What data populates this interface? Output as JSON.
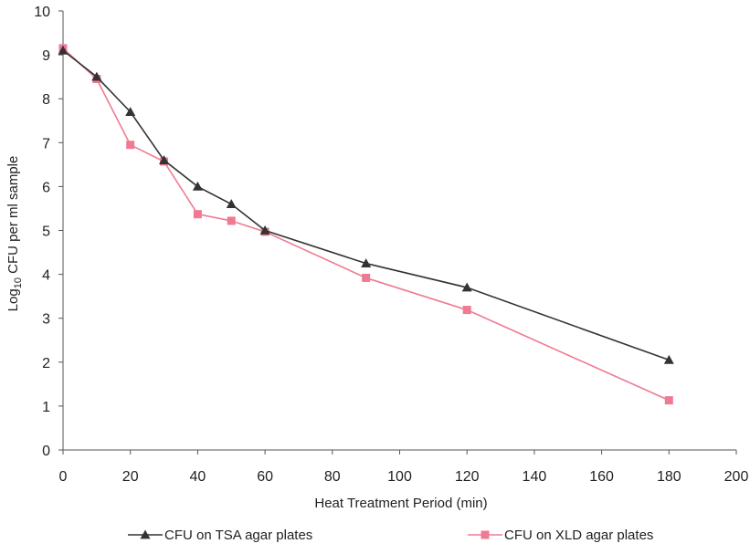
{
  "chart_data": {
    "type": "line",
    "title": "",
    "xlabel": "Heat Treatment Period (min)",
    "ylabel_main": "Log",
    "ylabel_sub": "10",
    "ylabel_rest": " CFU per ml sample",
    "xlim": [
      0,
      200
    ],
    "ylim": [
      0,
      10
    ],
    "xticks": [
      "0",
      "20",
      "40",
      "60",
      "80",
      "100",
      "120",
      "140",
      "160",
      "180",
      "200"
    ],
    "yticks": [
      "0",
      "1",
      "2",
      "3",
      "4",
      "5",
      "6",
      "7",
      "8",
      "9",
      "10"
    ],
    "grid": false,
    "legend_position": "bottom",
    "series": [
      {
        "name": "CFU on TSA agar plates",
        "color": "#333333",
        "marker": "triangle",
        "x": [
          0,
          10,
          20,
          30,
          40,
          50,
          60,
          90,
          120,
          180
        ],
        "y": [
          9.1,
          8.5,
          7.7,
          6.6,
          6.0,
          5.6,
          5.0,
          4.25,
          3.7,
          2.05
        ]
      },
      {
        "name": "CFU on XLD agar plates",
        "color": "#f07a92",
        "marker": "square",
        "x": [
          0,
          10,
          20,
          30,
          40,
          50,
          60,
          90,
          120,
          180
        ],
        "y": [
          9.15,
          8.45,
          6.95,
          6.57,
          5.37,
          5.22,
          4.97,
          3.92,
          3.19,
          1.13
        ]
      }
    ]
  }
}
